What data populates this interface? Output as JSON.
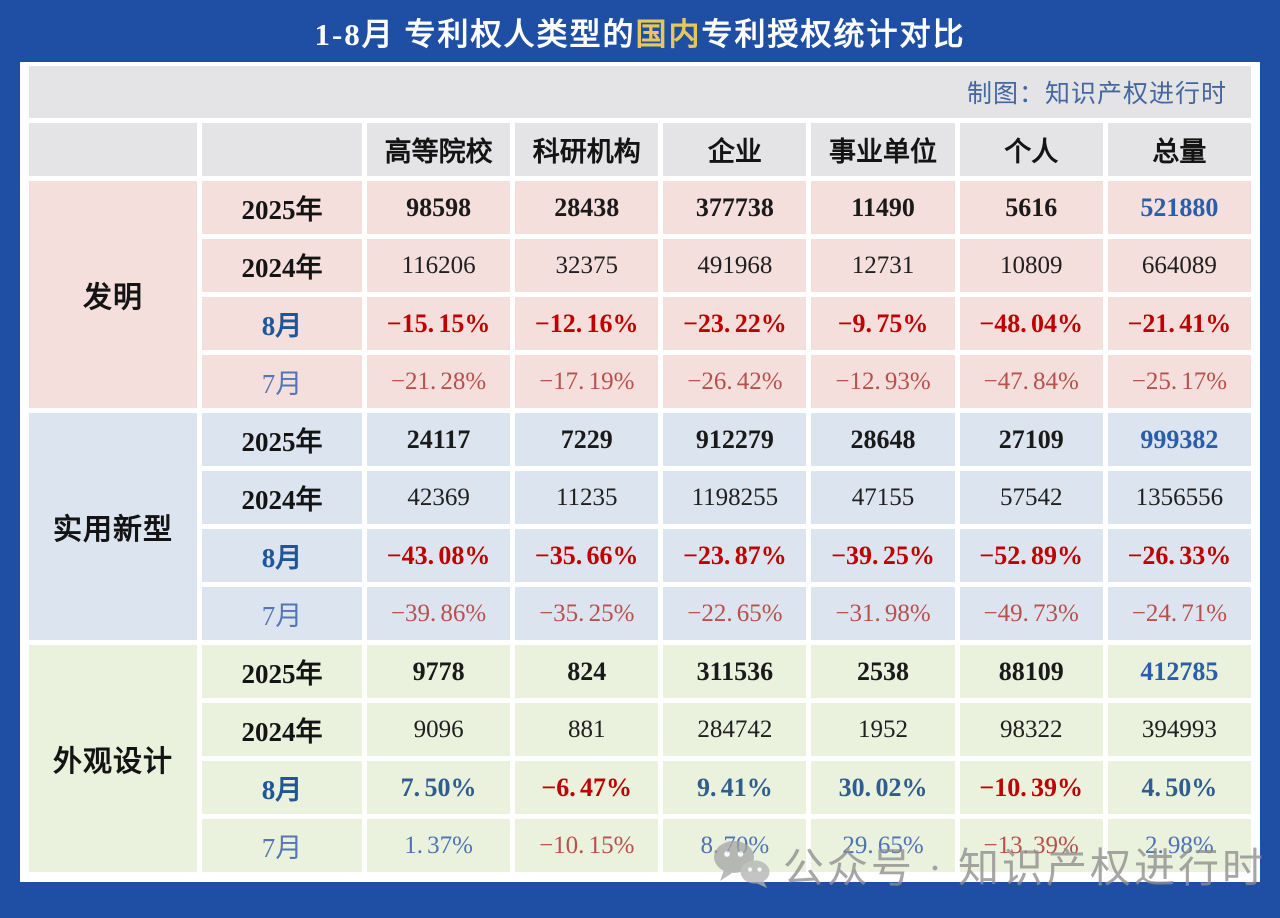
{
  "title": {
    "prefix": "1-8月 专利权人类型的",
    "highlight": "国内",
    "suffix": "专利授权统计对比"
  },
  "credit": "制图：知识产权进行时",
  "watermark": {
    "icon": "wechat-icon",
    "text": "公众号 · 知识产权进行时"
  },
  "colors": {
    "page_blue": "#1e4fa4",
    "title_highlight_gold": "#e8c65a",
    "header_gray": "#e4e4e6",
    "invention_pink": "#f4dfdd",
    "utility_blue": "#dce4ef",
    "design_green": "#eaf1dc",
    "strong_blue": "#1f5697",
    "soft_blue": "#5576b5",
    "strong_red": "#c00000",
    "soft_red": "#b8504c",
    "total_blue": "#2a5ea8",
    "credit_blue": "#44679f",
    "watermark_gray": "#8e8e8e"
  },
  "chart_data": {
    "type": "table",
    "title": "1-8月 专利权人类型的国内专利授权统计对比",
    "column_headers": [
      "高等院校",
      "科研机构",
      "企业",
      "事业单位",
      "个人",
      "总量"
    ],
    "sections": [
      {
        "name": "发明",
        "bg_key": "invention_pink",
        "rows": [
          {
            "label": "2025年",
            "style": "year-current",
            "values": [
              "98598",
              "28438",
              "377738",
              "11490",
              "5616",
              "521880"
            ]
          },
          {
            "label": "2024年",
            "style": "year-prev",
            "values": [
              "116206",
              "32375",
              "491968",
              "12731",
              "10809",
              "664089"
            ]
          },
          {
            "label": "8月",
            "style": "month-bold",
            "values": [
              "-15.15%",
              "-12.16%",
              "-23.22%",
              "-9.75%",
              "-48.04%",
              "-21.41%"
            ]
          },
          {
            "label": "7月",
            "style": "month-light",
            "values": [
              "-21.28%",
              "-17.19%",
              "-26.42%",
              "-12.93%",
              "-47.84%",
              "-25.17%"
            ]
          }
        ]
      },
      {
        "name": "实用新型",
        "bg_key": "utility_blue",
        "rows": [
          {
            "label": "2025年",
            "style": "year-current",
            "values": [
              "24117",
              "7229",
              "912279",
              "28648",
              "27109",
              "999382"
            ]
          },
          {
            "label": "2024年",
            "style": "year-prev",
            "values": [
              "42369",
              "11235",
              "1198255",
              "47155",
              "57542",
              "1356556"
            ]
          },
          {
            "label": "8月",
            "style": "month-bold",
            "values": [
              "-43.08%",
              "-35.66%",
              "-23.87%",
              "-39.25%",
              "-52.89%",
              "-26.33%"
            ]
          },
          {
            "label": "7月",
            "style": "month-light",
            "values": [
              "-39.86%",
              "-35.25%",
              "-22.65%",
              "-31.98%",
              "-49.73%",
              "-24.71%"
            ]
          }
        ]
      },
      {
        "name": "外观设计",
        "bg_key": "design_green",
        "rows": [
          {
            "label": "2025年",
            "style": "year-current",
            "values": [
              "9778",
              "824",
              "311536",
              "2538",
              "88109",
              "412785"
            ]
          },
          {
            "label": "2024年",
            "style": "year-prev",
            "values": [
              "9096",
              "881",
              "284742",
              "1952",
              "98322",
              "394993"
            ]
          },
          {
            "label": "8月",
            "style": "month-bold",
            "values": [
              "7.50%",
              "-6.47%",
              "9.41%",
              "30.02%",
              "-10.39%",
              "4.50%"
            ]
          },
          {
            "label": "7月",
            "style": "month-light",
            "values": [
              "1.37%",
              "-10.15%",
              "8.70%",
              "29.65%",
              "-13.39%",
              "2.98%"
            ]
          }
        ]
      }
    ]
  }
}
